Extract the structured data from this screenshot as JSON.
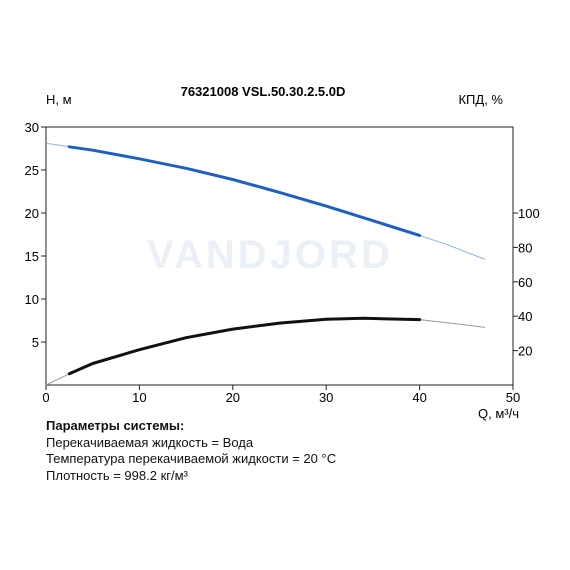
{
  "chart_data": {
    "type": "line",
    "title": "76321008 VSL.50.30.2.5.0D",
    "xlabel": "Q, м³/ч",
    "ylabel_left": "H, м",
    "ylabel_right": "КПД, %",
    "xlim": [
      0,
      50
    ],
    "ylim_left": [
      0,
      30
    ],
    "ylim_right": [
      0,
      150
    ],
    "x_ticks": [
      "0",
      "10",
      "20",
      "30",
      "40",
      "50"
    ],
    "y_left_ticks": [
      "5",
      "10",
      "15",
      "20",
      "25",
      "30"
    ],
    "y_right_ticks": [
      "20",
      "40",
      "60",
      "80",
      "100"
    ],
    "grid": false,
    "watermark": "VANDJORD",
    "series": [
      {
        "axis": "left",
        "color": "#1f5fbf",
        "operating_range": [
          2.5,
          40
        ],
        "x": [
          0,
          2.5,
          5,
          10,
          15,
          20,
          25,
          30,
          35,
          40,
          43,
          47
        ],
        "values": [
          28.1,
          27.7,
          27.3,
          26.3,
          25.2,
          23.9,
          22.4,
          20.8,
          19.1,
          17.4,
          16.3,
          14.6
        ]
      },
      {
        "axis": "right",
        "color": "#111111",
        "operating_range": [
          2.5,
          40
        ],
        "x": [
          0,
          2.5,
          5,
          10,
          15,
          20,
          25,
          30,
          34,
          40,
          44,
          47
        ],
        "values": [
          0,
          6.5,
          12.5,
          20.5,
          27.5,
          32.5,
          36,
          38.2,
          38.8,
          38.0,
          35.5,
          33.5
        ]
      }
    ]
  },
  "params": {
    "title": "Параметры системы:",
    "lines": [
      "Перекачиваемая жидкость = Вода",
      "Температура перекачиваемой жидкости = 20 °C",
      "Плотность = 998.2 кг/м³"
    ]
  }
}
